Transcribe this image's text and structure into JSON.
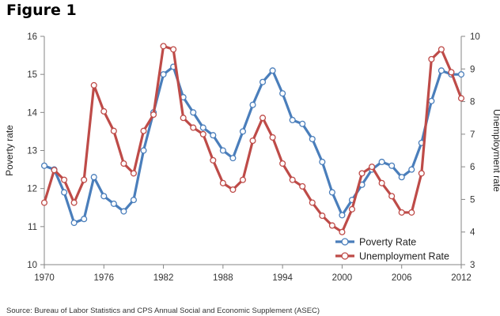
{
  "figure": {
    "title": "Figure 1",
    "source": "Source: Bureau of Labor Statistics and CPS Annual Social and Economic Supplement (ASEC)"
  },
  "chart_data": {
    "type": "line",
    "title": "",
    "xlabel": "",
    "ylabel": "Poverty rate",
    "y2label": "Unemployment rate",
    "xlim": [
      1970,
      2012
    ],
    "ylim": [
      10,
      16
    ],
    "y2lim": [
      3,
      10
    ],
    "x_ticks": [
      1970,
      1976,
      1982,
      1988,
      1994,
      2000,
      2006,
      2012
    ],
    "y_ticks": [
      10,
      11,
      12,
      13,
      14,
      15,
      16
    ],
    "y2_ticks": [
      3,
      4,
      5,
      6,
      7,
      8,
      9,
      10
    ],
    "grid": false,
    "legend": "bottom-right",
    "x": [
      1970,
      1971,
      1972,
      1973,
      1974,
      1975,
      1976,
      1977,
      1978,
      1979,
      1980,
      1981,
      1982,
      1983,
      1984,
      1985,
      1986,
      1987,
      1988,
      1989,
      1990,
      1991,
      1992,
      1993,
      1994,
      1995,
      1996,
      1997,
      1998,
      1999,
      2000,
      2001,
      2002,
      2003,
      2004,
      2005,
      2006,
      2007,
      2008,
      2009,
      2010,
      2011,
      2012
    ],
    "series": [
      {
        "name": "Poverty Rate",
        "axis": "left",
        "color": "#4a7ebb",
        "values": [
          12.6,
          12.5,
          11.9,
          11.1,
          11.2,
          12.3,
          11.8,
          11.6,
          11.4,
          11.7,
          13.0,
          14.0,
          15.0,
          15.2,
          14.4,
          14.0,
          13.6,
          13.4,
          13.0,
          12.8,
          13.5,
          14.2,
          14.8,
          15.1,
          14.5,
          13.8,
          13.7,
          13.3,
          12.7,
          11.9,
          11.3,
          11.7,
          12.1,
          12.5,
          12.7,
          12.6,
          12.3,
          12.5,
          13.2,
          14.3,
          15.1,
          15.0,
          15.0
        ]
      },
      {
        "name": "Unemployment Rate",
        "axis": "right",
        "color": "#be4b48",
        "values": [
          4.9,
          5.9,
          5.6,
          4.9,
          5.6,
          8.5,
          7.7,
          7.1,
          6.1,
          5.8,
          7.1,
          7.6,
          9.7,
          9.6,
          7.5,
          7.2,
          7.0,
          6.2,
          5.5,
          5.3,
          5.6,
          6.8,
          7.5,
          6.9,
          6.1,
          5.6,
          5.4,
          4.9,
          4.5,
          4.2,
          4.0,
          4.7,
          5.8,
          6.0,
          5.5,
          5.1,
          4.6,
          4.6,
          5.8,
          9.3,
          9.6,
          8.9,
          8.1
        ]
      }
    ]
  }
}
